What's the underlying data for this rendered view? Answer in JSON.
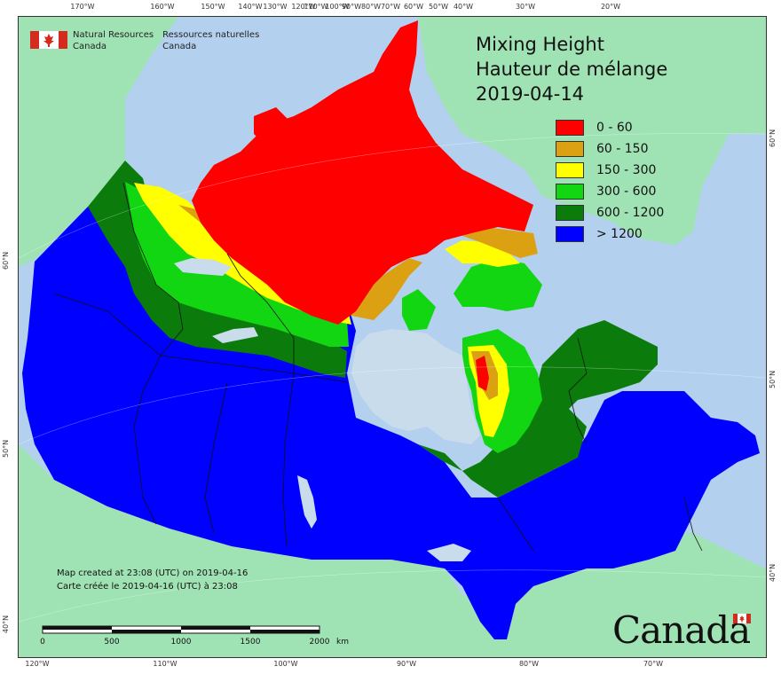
{
  "title": {
    "line1": "Mixing Height",
    "line2": "Hauteur de mélange",
    "date": "2019-04-14"
  },
  "legend": [
    {
      "label": "0 - 60",
      "color": "#ff0000"
    },
    {
      "label": "60 - 150",
      "color": "#dca013"
    },
    {
      "label": "150 - 300",
      "color": "#ffff00"
    },
    {
      "label": "300 - 600",
      "color": "#12d612"
    },
    {
      "label": "600 - 1200",
      "color": "#0b7c0b"
    },
    {
      "label": "> 1200",
      "color": "#0000ff"
    }
  ],
  "agency": {
    "en_line1": "Natural Resources",
    "en_line2": "Canada",
    "fr_line1": "Ressources naturelles",
    "fr_line2": "Canada"
  },
  "credit": {
    "en": "Map created at 23:08 (UTC) on 2019-04-16",
    "fr": "Carte créée le 2019-04-16 (UTC) à 23:08"
  },
  "scale": {
    "labels": [
      "0",
      "500",
      "1000",
      "1500",
      "2000"
    ],
    "unit": "km"
  },
  "wordmark": "Canada",
  "graticule": {
    "top": [
      "170°W",
      "160°W",
      "150°W",
      "140°W",
      "130°W",
      "120°W",
      "110°W",
      "100°W",
      "90°W",
      "80°W",
      "70°W",
      "60°W",
      "50°W",
      "40°W",
      "30°W",
      "20°W"
    ],
    "bottom": [
      "120°W",
      "110°W",
      "100°W",
      "90°W",
      "80°W",
      "70°W"
    ],
    "left": [
      "60°N",
      "50°N",
      "40°N"
    ],
    "right": [
      "60°N",
      "50°N",
      "40°N"
    ]
  },
  "colors": {
    "ocean": "#b3d1ef",
    "land_other": "#9fe3b4",
    "lake": "#c8dcec"
  }
}
